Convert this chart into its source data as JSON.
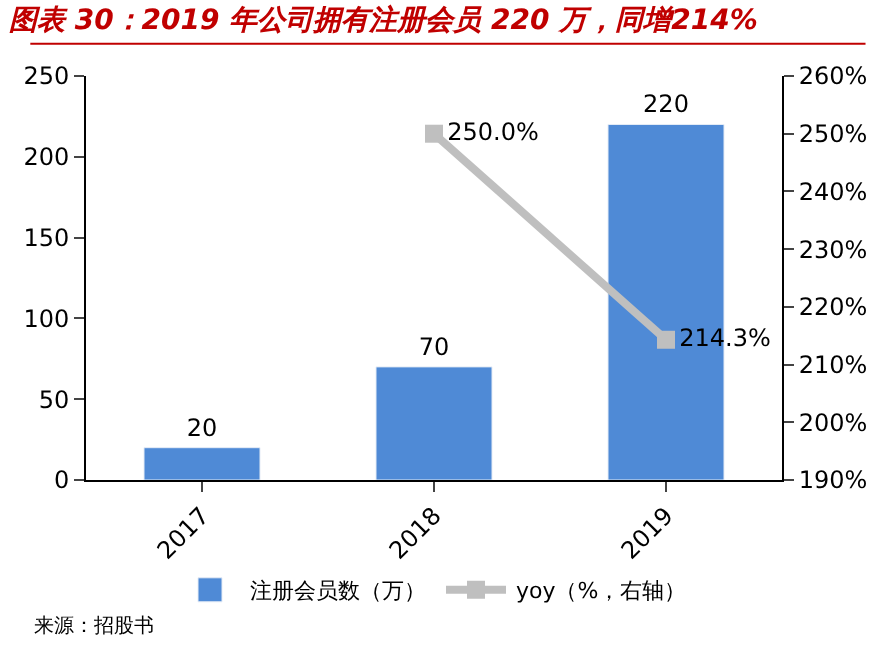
{
  "chart_data": {
    "type": "bar",
    "title": "图表 30：2019 年公司拥有注册会员 220 万，同增214%",
    "categories": [
      "2017",
      "2018",
      "2019"
    ],
    "series": [
      {
        "name": "注册会员数（万）",
        "color": "#4f8ad6",
        "values": [
          20,
          70,
          220
        ],
        "value_labels": [
          "20",
          "70",
          "220"
        ]
      },
      {
        "name": "yoy（%，右轴）",
        "type": "line",
        "axis": "y2",
        "color": "#bfbfbf",
        "marker": "square",
        "values": [
          null,
          250.0,
          214.3
        ],
        "value_labels": [
          null,
          "250.0%",
          "214.3%"
        ]
      }
    ],
    "ylim": [
      0,
      250
    ],
    "yticks": [
      0,
      50,
      100,
      150,
      200,
      250
    ],
    "y2lim": [
      190,
      260
    ],
    "y2ticks": [
      {
        "value": 190,
        "label": "190%"
      },
      {
        "value": 200,
        "label": "200%"
      },
      {
        "value": 210,
        "label": "210%"
      },
      {
        "value": 220,
        "label": "220%"
      },
      {
        "value": 230,
        "label": "230%"
      },
      {
        "value": 240,
        "label": "240%"
      },
      {
        "value": 250,
        "label": "250%"
      },
      {
        "value": 260,
        "label": "260%"
      }
    ],
    "legend": "bottom",
    "annotations": [
      "来源：招股书"
    ]
  }
}
